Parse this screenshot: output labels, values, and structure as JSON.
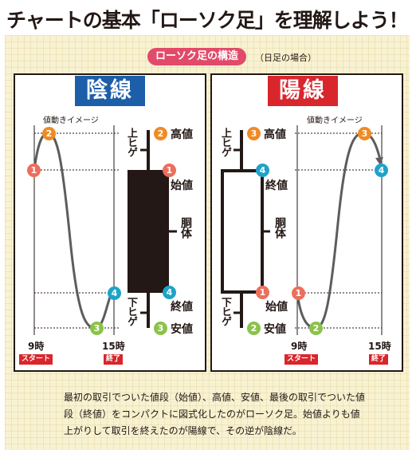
{
  "title": "チャートの基本「ローソク足」を理解しよう！",
  "section_label": "ローソク足の構造",
  "section_note": "（日足の場合）",
  "colors": {
    "yin": "#1c5ea7",
    "yang": "#d8262c",
    "pill": "#e24a6a",
    "c1": "#ec6e5c",
    "c2": "#ef8b25",
    "c3": "#8bc34a",
    "c4": "#1ea3c8",
    "flag": "#d8262c"
  },
  "yin": {
    "badge": "陰線",
    "movement_label": "値動きイメージ",
    "upper_shadow": "上ヒゲ",
    "lower_shadow": "下ヒゲ",
    "body": "胴体",
    "high": "高値",
    "open": "始値",
    "close": "終値",
    "low": "安値",
    "time_start": "9時",
    "time_end": "15時",
    "start": "スタート",
    "end": "終了"
  },
  "yang": {
    "badge": "陽線",
    "movement_label": "値動きイメージ",
    "upper_shadow": "上ヒゲ",
    "lower_shadow": "下ヒゲ",
    "body": "胴体",
    "high": "高値",
    "open": "始値",
    "close": "終値",
    "low": "安値",
    "time_start": "9時",
    "time_end": "15時",
    "start": "スタート",
    "end": "終了"
  },
  "numbers": {
    "n1": "1",
    "n2": "2",
    "n3": "3",
    "n4": "4"
  },
  "description": "最初の取引でついた値段（始値）、高値、安値、最後の取引でついた値段（終値）をコンパクトに図式化したのがローソク足。始値よりも値上がりして取引を終えたのが陽線で、その逆が陰線だ。"
}
